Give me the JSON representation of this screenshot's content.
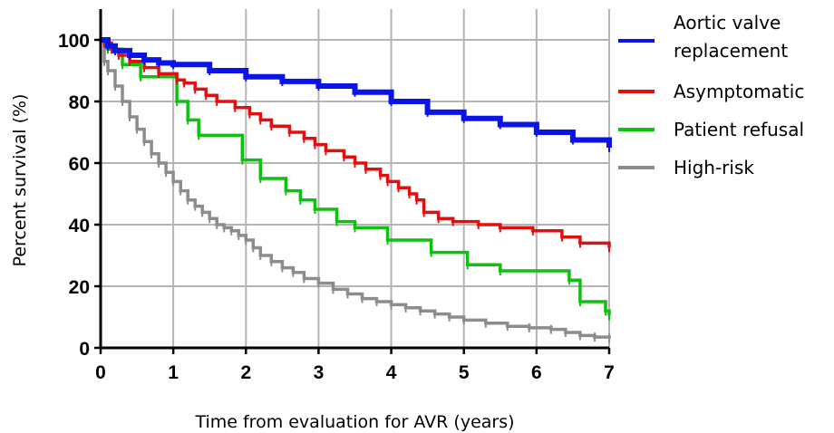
{
  "chart_data": {
    "type": "line",
    "xlabel": "Time from evaluation for AVR (years)",
    "ylabel": "Percent survival (%)",
    "xlim": [
      0,
      7
    ],
    "ylim": [
      0,
      110
    ],
    "x_ticks": [
      "0",
      "1",
      "2",
      "3",
      "4",
      "5",
      "6",
      "7"
    ],
    "y_ticks": [
      "0",
      "20",
      "40",
      "60",
      "80",
      "100"
    ],
    "grid": true,
    "legend_position": "right",
    "series": [
      {
        "name": "Aortic valve replacement",
        "legend_lines": [
          "Aortic valve",
          "replacement"
        ],
        "color": "#0a14e6",
        "x": [
          0,
          0.1,
          0.2,
          0.4,
          0.6,
          0.8,
          1.0,
          1.5,
          2.0,
          2.5,
          3.0,
          3.5,
          4.0,
          4.5,
          5.0,
          5.5,
          6.0,
          6.5,
          7.0
        ],
        "y": [
          100,
          98,
          96.5,
          95,
          93.5,
          92.5,
          92,
          90,
          88,
          86.5,
          85,
          83,
          80,
          76.5,
          74.5,
          72.5,
          70,
          67.5,
          65
        ]
      },
      {
        "name": "Asymptomatic",
        "legend_lines": [
          "Asymptomatic"
        ],
        "color": "#e01010",
        "x": [
          0,
          0.05,
          0.15,
          0.25,
          0.4,
          0.6,
          0.8,
          1.05,
          1.15,
          1.3,
          1.45,
          1.6,
          1.85,
          2.05,
          2.2,
          2.35,
          2.6,
          2.8,
          2.95,
          3.1,
          3.35,
          3.5,
          3.65,
          3.85,
          3.95,
          4.1,
          4.25,
          4.35,
          4.45,
          4.65,
          4.85,
          5.2,
          5.5,
          5.95,
          6.35,
          6.6,
          7.0
        ],
        "y": [
          100,
          99,
          97,
          95,
          93,
          91,
          89,
          87,
          86,
          84,
          82,
          80,
          78,
          76,
          74,
          72,
          70,
          68,
          66,
          64,
          62,
          60,
          58,
          56,
          54,
          52,
          50,
          48,
          44,
          42,
          41,
          40,
          39,
          38,
          36,
          34,
          32.5
        ]
      },
      {
        "name": "Patient refusal",
        "legend_lines": [
          "Patient refusal"
        ],
        "color": "#10c010",
        "x": [
          0,
          0.1,
          0.3,
          0.55,
          1.05,
          1.2,
          1.35,
          1.95,
          2.2,
          2.55,
          2.75,
          2.95,
          3.25,
          3.5,
          3.95,
          4.55,
          5.05,
          5.5,
          6.45,
          6.6,
          6.95,
          7.0
        ],
        "y": [
          100,
          97,
          92,
          88,
          80,
          74,
          69,
          61,
          55,
          51,
          48,
          45,
          41,
          39,
          35,
          31,
          27,
          25,
          22,
          15,
          12,
          10.5
        ]
      },
      {
        "name": "High-risk",
        "legend_lines": [
          "High-risk"
        ],
        "color": "#8c8c8c",
        "x": [
          0,
          0.05,
          0.1,
          0.2,
          0.3,
          0.4,
          0.5,
          0.6,
          0.7,
          0.8,
          0.9,
          1.0,
          1.1,
          1.2,
          1.3,
          1.4,
          1.5,
          1.6,
          1.7,
          1.8,
          1.9,
          2.0,
          2.1,
          2.2,
          2.35,
          2.5,
          2.65,
          2.8,
          3.0,
          3.2,
          3.4,
          3.6,
          3.8,
          4.0,
          4.2,
          4.4,
          4.6,
          4.8,
          5.0,
          5.3,
          5.6,
          5.9,
          6.2,
          6.4,
          6.6,
          6.8,
          7.0
        ],
        "y": [
          100,
          93,
          90,
          85,
          80,
          75,
          71,
          67,
          63,
          60,
          57,
          54,
          51,
          48,
          46,
          44,
          42,
          40,
          39,
          38,
          36.5,
          35,
          32.5,
          30,
          28,
          26,
          24.5,
          22.5,
          21,
          19,
          17.5,
          16,
          15,
          14,
          13,
          12,
          11,
          10,
          9,
          8,
          7,
          6.5,
          6,
          5,
          4,
          3.5,
          3
        ]
      }
    ]
  }
}
